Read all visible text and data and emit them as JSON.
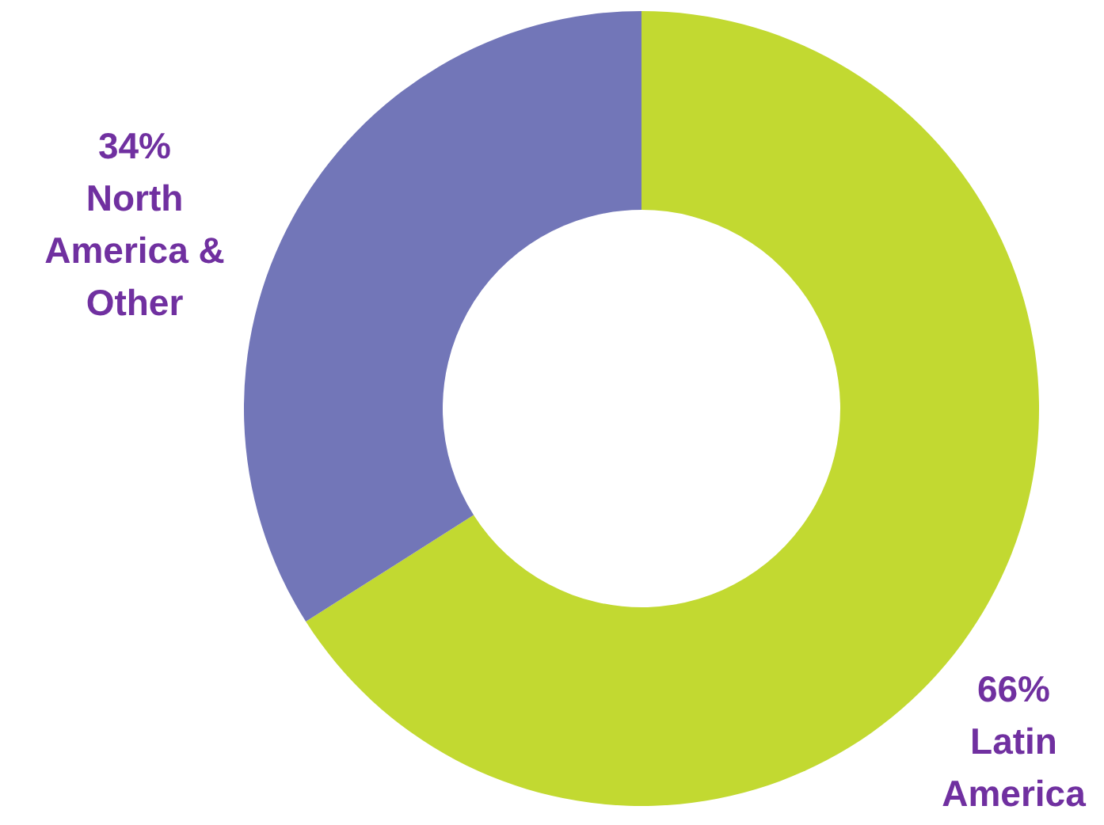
{
  "chart_data": {
    "type": "donut",
    "categories": [
      "Latin America",
      "North America & Other"
    ],
    "values": [
      66,
      34
    ],
    "colors": [
      "#c2d931",
      "#7276b8"
    ],
    "value_labels": [
      "66%",
      "34%"
    ]
  }
}
